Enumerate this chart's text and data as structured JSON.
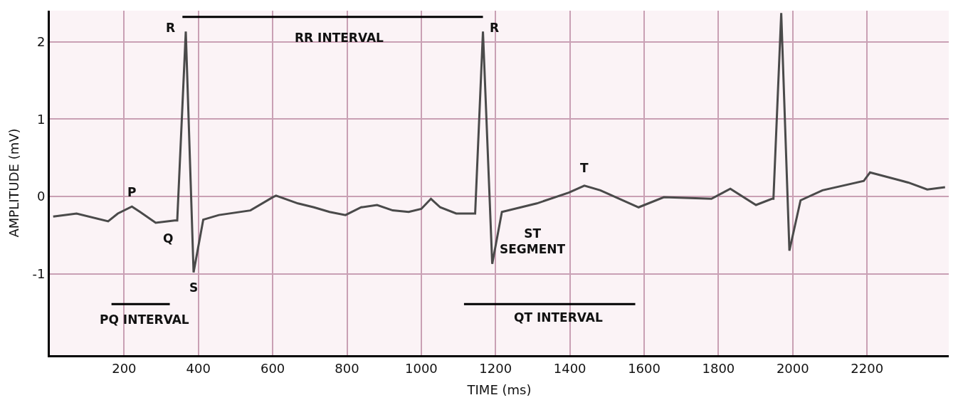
{
  "chart_data": {
    "type": "line",
    "xlabel": "TIME (ms)",
    "ylabel": "AMPLITUDE (mV)",
    "xlim": [
      0,
      2420
    ],
    "ylim": [
      -2.05,
      2.4
    ],
    "xticks": [
      200,
      400,
      600,
      800,
      1000,
      1200,
      1400,
      1600,
      1800,
      2000,
      2200
    ],
    "yticks": [
      -1,
      0,
      1,
      2
    ],
    "grid": true,
    "line_style": "solid",
    "marker": "none",
    "series": [
      {
        "color": "#4a4a4a",
        "x": [
          9,
          72,
          157,
          183,
          221,
          243,
          285,
          336,
          343,
          366,
          387,
          413,
          455,
          540,
          600,
          609,
          668,
          711,
          753,
          796,
          838,
          881,
          923,
          966,
          1000,
          1026,
          1051,
          1094,
          1136,
          1145,
          1166,
          1191,
          1217,
          1311,
          1397,
          1439,
          1482,
          1585,
          1653,
          1781,
          1832,
          1901,
          1944,
          1948,
          1969,
          1991,
          2021,
          2080,
          2191,
          2208,
          2311,
          2362,
          2410
        ],
        "values": [
          -0.26,
          -0.22,
          -0.32,
          -0.22,
          -0.13,
          -0.2,
          -0.34,
          -0.31,
          -0.31,
          2.13,
          -0.98,
          -0.3,
          -0.24,
          -0.18,
          -0.01,
          0.01,
          -0.09,
          -0.14,
          -0.2,
          -0.24,
          -0.14,
          -0.11,
          -0.18,
          -0.2,
          -0.16,
          -0.03,
          -0.14,
          -0.22,
          -0.22,
          -0.22,
          2.13,
          -0.87,
          -0.2,
          -0.09,
          0.05,
          0.14,
          0.08,
          -0.14,
          -0.01,
          -0.03,
          0.1,
          -0.11,
          -0.03,
          -0.03,
          2.37,
          -0.7,
          -0.05,
          0.08,
          0.2,
          0.31,
          0.18,
          0.09,
          0.12
        ]
      },
      {
        "color": "#000000",
        "x": [
          357,
          1166
        ],
        "values": [
          2.32,
          2.32
        ]
      },
      {
        "color": "#000000",
        "x": [
          166,
          323
        ],
        "values": [
          -1.39,
          -1.39
        ]
      },
      {
        "color": "#000000",
        "x": [
          1115,
          1576
        ],
        "values": [
          -1.39,
          -1.39
        ]
      }
    ],
    "annotations": [
      {
        "text": "R",
        "x": 366,
        "y": 2.13
      },
      {
        "text": "R",
        "x": 1166,
        "y": 2.13
      },
      {
        "text": "RR INTERVAL",
        "x": 761.5,
        "y": 2.32
      },
      {
        "text": "P",
        "x": 221,
        "y": -0.13
      },
      {
        "text": "Q",
        "x": 336,
        "y": -0.31
      },
      {
        "text": "S",
        "x": 387,
        "y": -0.98
      },
      {
        "text": "T",
        "x": 1439,
        "y": 0.14
      },
      {
        "text": "ST\nSEGMENT",
        "x": 1217,
        "y": -0.2
      },
      {
        "text": "PQ INTERVAL",
        "x": 244.5,
        "y": -1.39
      },
      {
        "text": "QT INTERVAL",
        "x": 1345.5,
        "y": -1.39
      }
    ]
  }
}
